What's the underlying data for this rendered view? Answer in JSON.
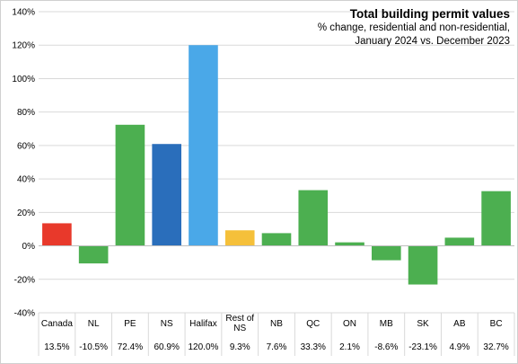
{
  "chart_data": {
    "type": "bar",
    "title": "Total building permit values",
    "subtitle_line1": "% change, residential and non-residential,",
    "subtitle_line2": "January 2024 vs. December  2023",
    "xlabel": "",
    "ylabel": "",
    "ylim": [
      -40,
      140
    ],
    "yticks": [
      -40,
      -20,
      0,
      20,
      40,
      60,
      80,
      100,
      120,
      140
    ],
    "ytick_labels": [
      "-40%",
      "-20%",
      "0%",
      "20%",
      "40%",
      "60%",
      "80%",
      "100%",
      "120%",
      "140%"
    ],
    "grid": true,
    "legend": "none",
    "categories": [
      "Canada",
      "NL",
      "PE",
      "NS",
      "Halifax",
      "Rest of NS",
      "NB",
      "QC",
      "ON",
      "MB",
      "SK",
      "AB",
      "BC"
    ],
    "values": [
      13.5,
      -10.5,
      72.4,
      60.9,
      120.0,
      9.3,
      7.6,
      33.3,
      2.1,
      -8.6,
      -23.1,
      4.9,
      32.7
    ],
    "value_labels": [
      "13.5%",
      "-10.5%",
      "72.4%",
      "60.9%",
      "120.0%",
      "9.3%",
      "7.6%",
      "33.3%",
      "2.1%",
      "-8.6%",
      "-23.1%",
      "4.9%",
      "32.7%"
    ],
    "colors": [
      "#e8392b",
      "#4caf50",
      "#4caf50",
      "#2a6ebb",
      "#4aa8e8",
      "#f5c03a",
      "#4caf50",
      "#4caf50",
      "#4caf50",
      "#4caf50",
      "#4caf50",
      "#4caf50",
      "#4caf50"
    ]
  }
}
